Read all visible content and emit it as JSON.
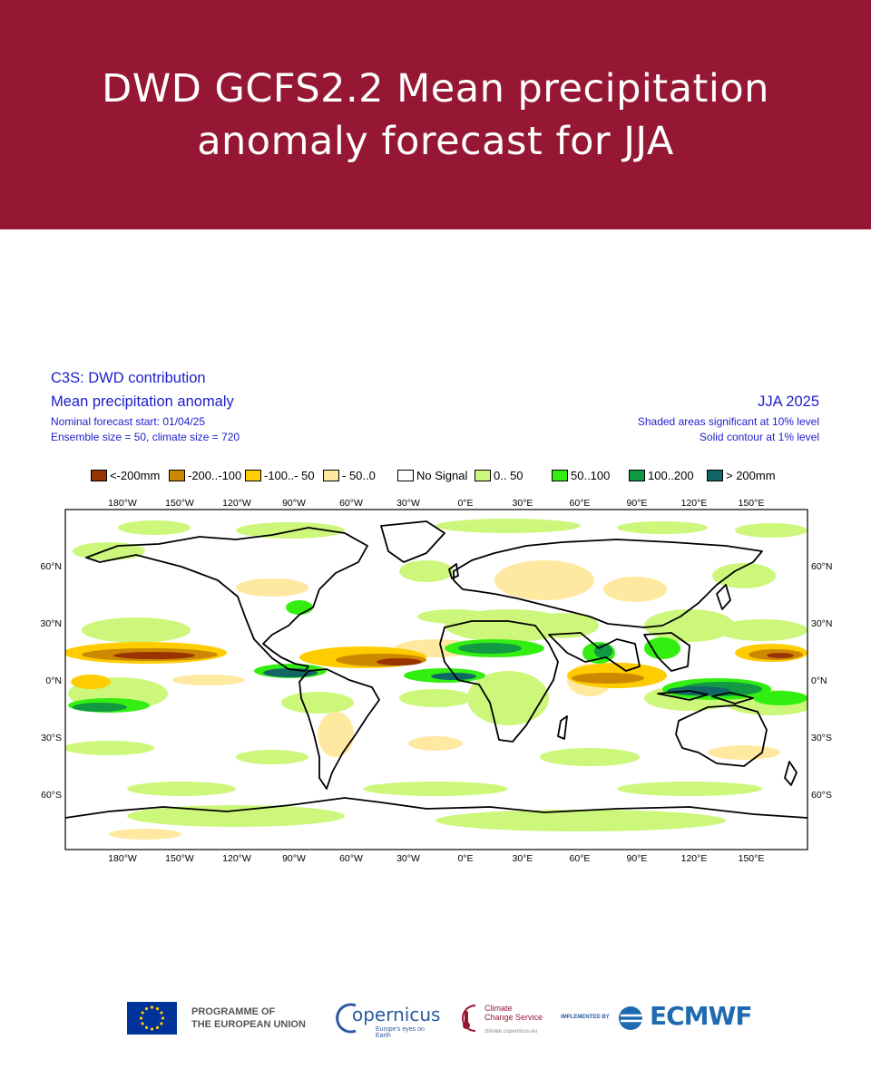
{
  "banner": {
    "title_line1": "DWD GCFS2.2 Mean precipitation",
    "title_line2": "anomaly forecast for JJA",
    "background": "#951734"
  },
  "header": {
    "left_line1": "C3S: DWD contribution",
    "left_line2": "Mean precipitation anomaly",
    "left_line3": "Nominal forecast start: 01/04/25",
    "left_line4": "Ensemble size = 50, climate size = 720",
    "right_line1": "JJA 2025",
    "right_line2": "Shaded areas significant at 10% level",
    "right_line3": "Solid contour at 1% level",
    "text_color": "#1d1dcc"
  },
  "legend": [
    {
      "label": "<-200mm",
      "color": "#993300"
    },
    {
      "label": "-200..-100",
      "color": "#cc8800"
    },
    {
      "label": "-100..- 50",
      "color": "#ffcc00"
    },
    {
      "label": "- 50..0",
      "color": "#ffe8a0"
    },
    {
      "label": "No Signal",
      "color": "#ffffff"
    },
    {
      "label": "0.. 50",
      "color": "#ccf77a"
    },
    {
      "label": "50..100",
      "color": "#33ee11"
    },
    {
      "label": "100..200",
      "color": "#119944"
    },
    {
      "label": "> 200mm",
      "color": "#116666"
    }
  ],
  "axes": {
    "lon_labels": [
      "180°W",
      "150°W",
      "120°W",
      "90°W",
      "60°W",
      "30°W",
      "0°E",
      "30°E",
      "60°E",
      "90°E",
      "120°E",
      "150°E"
    ],
    "lat_labels": [
      "60°N",
      "30°N",
      "0°N",
      "30°S",
      "60°S"
    ]
  },
  "footer": {
    "eu_line1": "PROGRAMME OF",
    "eu_line2": "THE EUROPEAN UNION",
    "copernicus_name": "opernicus",
    "copernicus_tagline": "Europe's eyes on Earth",
    "c3s_line1": "Climate",
    "c3s_line2": "Change Service",
    "c3s_url": "climate.copernicus.eu",
    "implemented_by": "IMPLEMENTED BY",
    "ecmwf_name": "ECMWF"
  }
}
